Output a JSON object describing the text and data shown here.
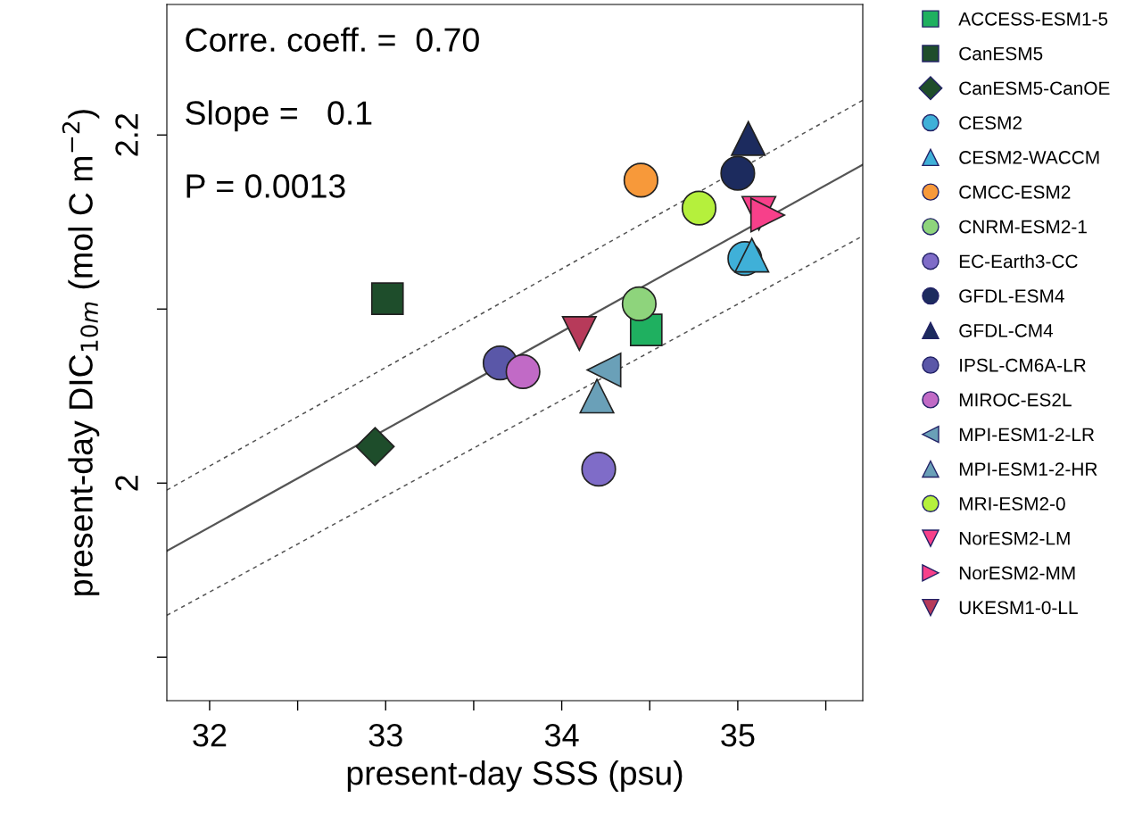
{
  "chart_data": {
    "type": "scatter",
    "xlabel": "present-day SSS (psu)",
    "ylabel": "present-day DIC$_{10m}$ (mol C m$^{−2}$)",
    "annotations": [
      "Corre. coeff. =  0.70",
      "Slope =   0.1",
      "P = 0.0013"
    ],
    "xlim": [
      31.757,
      35.71
    ],
    "ylim": [
      1.875,
      2.275
    ],
    "xticks": [
      32,
      {
        "value": 32.5,
        "label": null
      },
      33,
      {
        "value": 33.5,
        "label": null
      },
      34,
      {
        "value": 34.5,
        "label": null
      },
      35,
      {
        "value": 35.5,
        "label": null
      }
    ],
    "yticks": [
      {
        "value": 1.9,
        "label": null
      },
      2,
      {
        "value": 2.1,
        "label": null
      },
      2.2
    ],
    "grid": false,
    "legend": "right",
    "series": [
      {
        "type": "line",
        "x": [
          31.757,
          35.71
        ],
        "values": [
          1.961,
          2.183
        ],
        "color": "#555555",
        "line_style": "solid"
      },
      {
        "type": "line",
        "x": [
          31.757,
          35.71
        ],
        "values": [
          1.996,
          2.22
        ],
        "color": "#555555",
        "line_style": "dashed"
      },
      {
        "type": "line",
        "x": [
          31.757,
          35.71
        ],
        "values": [
          1.924,
          2.142
        ],
        "color": "#555555",
        "line_style": "dashed"
      },
      {
        "name": "ACCESS-ESM1-5",
        "x": [
          34.48
        ],
        "values": [
          2.088
        ],
        "color": "#1fb060",
        "marker": "square"
      },
      {
        "name": "CanESM5",
        "x": [
          33.01
        ],
        "values": [
          2.106
        ],
        "color": "#1e4d2b",
        "marker": "square"
      },
      {
        "name": "CanESM5-CanOE",
        "x": [
          32.94
        ],
        "values": [
          2.021
        ],
        "color": "#1e4d2b",
        "marker": "diamond"
      },
      {
        "name": "CESM2",
        "x": [
          35.04
        ],
        "values": [
          2.129
        ],
        "color": "#3fb0d8",
        "marker": "circle"
      },
      {
        "name": "CESM2-WACCM",
        "x": [
          35.08
        ],
        "values": [
          2.131
        ],
        "color": "#3fb0d8",
        "marker": "triangle"
      },
      {
        "name": "CMCC-ESM2",
        "x": [
          34.45
        ],
        "values": [
          2.174
        ],
        "color": "#f7993a",
        "marker": "circle"
      },
      {
        "name": "CNRM-ESM2-1",
        "x": [
          34.44
        ],
        "values": [
          2.103
        ],
        "color": "#8ed47c",
        "marker": "circle"
      },
      {
        "name": "EC-Earth3-CC",
        "x": [
          34.21
        ],
        "values": [
          2.008
        ],
        "color": "#7f6cc8",
        "marker": "circle"
      },
      {
        "name": "GFDL-ESM4",
        "x": [
          35.0
        ],
        "values": [
          2.178
        ],
        "color": "#1c2b5e",
        "marker": "circle"
      },
      {
        "name": "GFDL-CM4",
        "x": [
          35.06
        ],
        "values": [
          2.198
        ],
        "color": "#1c2b5e",
        "marker": "triangle"
      },
      {
        "name": "IPSL-CM6A-LR",
        "x": [
          33.65
        ],
        "values": [
          2.069
        ],
        "color": "#5a57a8",
        "marker": "circle"
      },
      {
        "name": "MIROC-ES2L",
        "x": [
          33.78
        ],
        "values": [
          2.064
        ],
        "color": "#c16ac6",
        "marker": "circle"
      },
      {
        "name": "MPI-ESM1-2-LR",
        "x": [
          34.24
        ],
        "values": [
          2.065
        ],
        "color": "#6aa0b8",
        "marker": "triangle-left"
      },
      {
        "name": "MPI-ESM1-2-HR",
        "x": [
          34.2
        ],
        "values": [
          2.05
        ],
        "color": "#6aa0b8",
        "marker": "triangle"
      },
      {
        "name": "MRI-ESM2-0",
        "x": [
          34.78
        ],
        "values": [
          2.158
        ],
        "color": "#b5f03c",
        "marker": "circle"
      },
      {
        "name": "NorESM2-LM",
        "x": [
          35.12
        ],
        "values": [
          2.155
        ],
        "color": "#f7408a",
        "marker": "triangle-down"
      },
      {
        "name": "NorESM2-MM",
        "x": [
          35.17
        ],
        "values": [
          2.154
        ],
        "color": "#f7408a",
        "marker": "triangle-right"
      },
      {
        "name": "UKESM1-0-LL",
        "x": [
          34.1
        ],
        "values": [
          2.086
        ],
        "color": "#b73a5a",
        "marker": "triangle-down"
      }
    ]
  }
}
